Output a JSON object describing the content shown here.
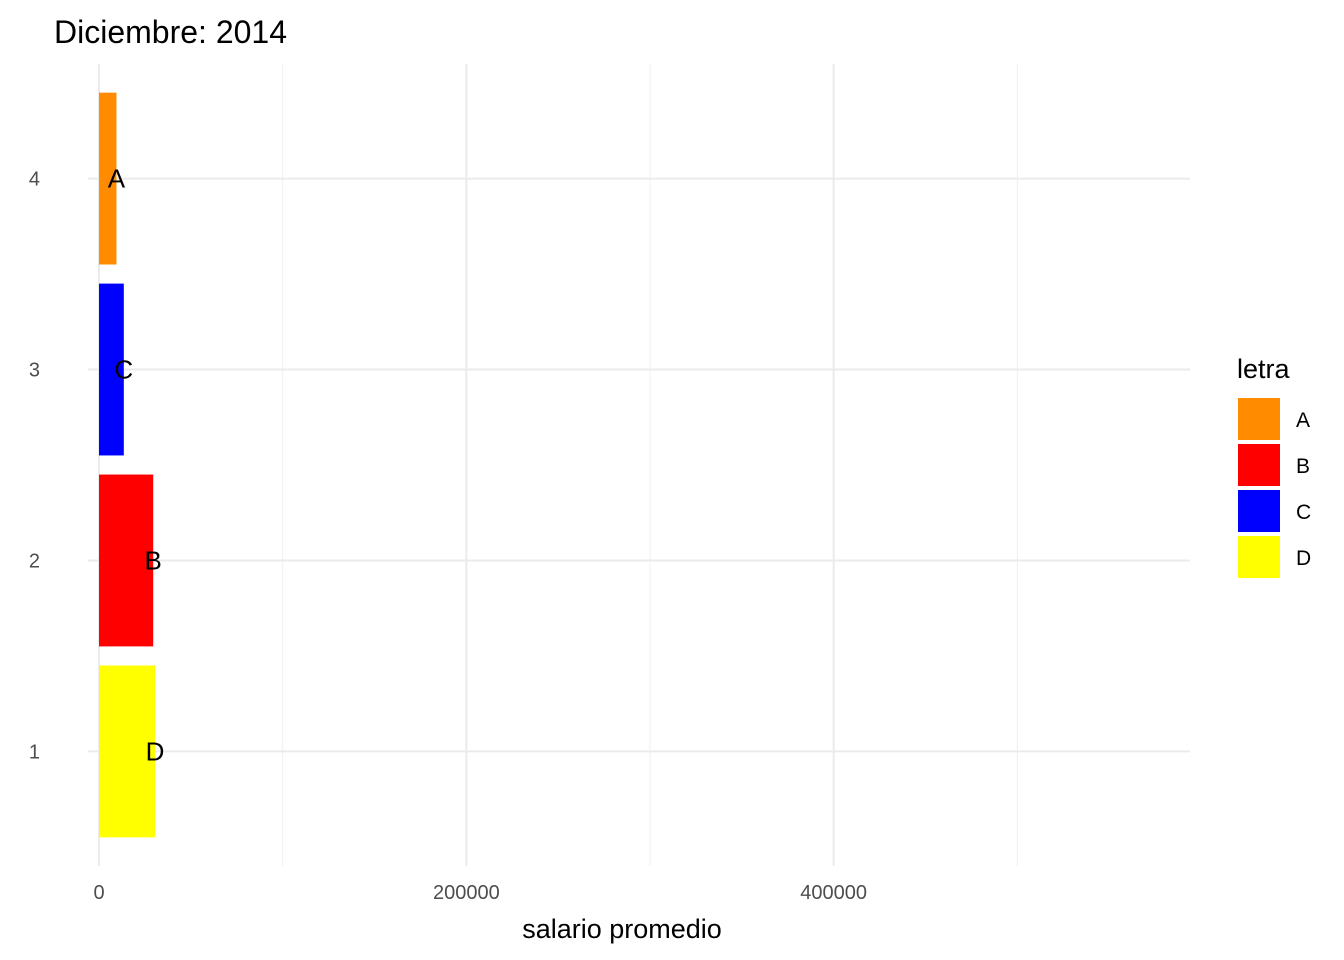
{
  "chart_data": {
    "type": "bar",
    "orientation": "horizontal",
    "title": "Diciembre: 2014",
    "xlabel": "salario promedio",
    "ylabel": "",
    "xlim": [
      -6000,
      594000
    ],
    "ylim": [
      0.4,
      4.6
    ],
    "x_ticks": [
      0,
      200000,
      400000
    ],
    "x_tick_labels": [
      "0",
      "200000",
      "400000"
    ],
    "y_ticks": [
      1,
      2,
      3,
      4
    ],
    "y_tick_labels": [
      "1",
      "2",
      "3",
      "4"
    ],
    "grid": true,
    "legend": {
      "title": "letra",
      "position": "right",
      "entries": [
        {
          "label": "A",
          "color": "#FF8C00"
        },
        {
          "label": "B",
          "color": "#FF0000"
        },
        {
          "label": "C",
          "color": "#0000FF"
        },
        {
          "label": "D",
          "color": "#FFFF00"
        }
      ]
    },
    "bars": [
      {
        "y": 1,
        "value": 30500,
        "letra": "D",
        "label": "D"
      },
      {
        "y": 2,
        "value": 29500,
        "letra": "B",
        "label": "B"
      },
      {
        "y": 3,
        "value": 13500,
        "letra": "C",
        "label": "C"
      },
      {
        "y": 4,
        "value": 9500,
        "letra": "A",
        "label": "A"
      }
    ]
  }
}
